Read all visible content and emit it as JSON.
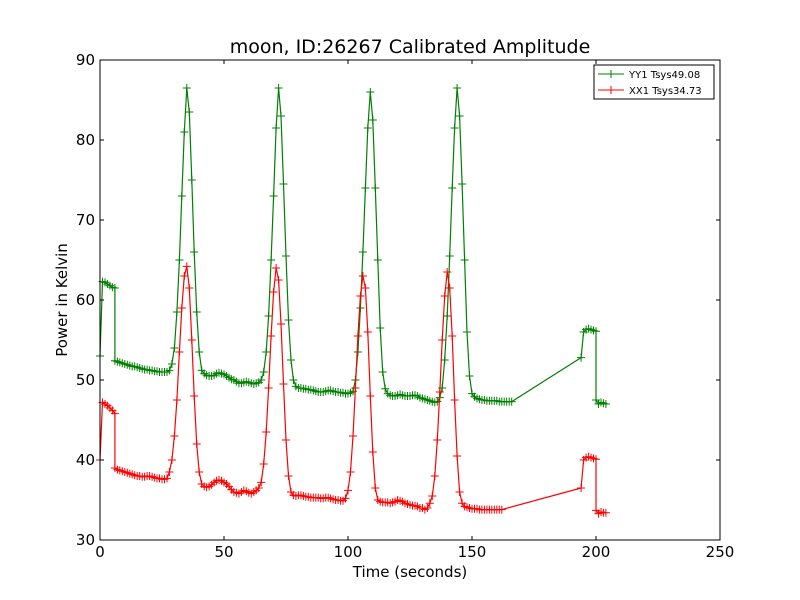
{
  "chart_data": {
    "type": "line",
    "title": "moon, ID:26267 Calibrated Amplitude",
    "xlabel": "Time (seconds)",
    "ylabel": "Power in Kelvin",
    "xlim": [
      0,
      250
    ],
    "ylim": [
      30,
      90
    ],
    "xticks": [
      0,
      50,
      100,
      150,
      200,
      250
    ],
    "yticks": [
      30,
      40,
      50,
      60,
      70,
      80,
      90
    ],
    "grid": false,
    "legend_position": "top-right",
    "marker": "+",
    "sample_interval": 1,
    "series": [
      {
        "name": "YY1 Tsys49.08",
        "color": "#008000",
        "segments": [
          {
            "x0": 0,
            "values": [
              53.0,
              62.3,
              62.2,
              62.0,
              61.8,
              61.6,
              61.5
            ]
          },
          {
            "x0": 6,
            "values": [
              52.4,
              52.3,
              52.2,
              52.1,
              52.0,
              51.9,
              51.8,
              51.7,
              51.7,
              51.6,
              51.5,
              51.4,
              51.3,
              51.3,
              51.2,
              51.2,
              51.1,
              51.1,
              51.0,
              51.0,
              51.0,
              51.0,
              51.2,
              52.0,
              54.0,
              58.5,
              65.0,
              73.0,
              81.0,
              86.5,
              83.5,
              75.0,
              66.0,
              58.5,
              53.5,
              51.2,
              50.8,
              50.6,
              50.5,
              50.5,
              50.6,
              50.8,
              50.9,
              50.8,
              50.7,
              50.5,
              50.3,
              50.1,
              50.0,
              49.8,
              49.6,
              49.6,
              49.7,
              49.8,
              49.7,
              49.6,
              49.5,
              49.6,
              49.7,
              50.0,
              51.0,
              53.5,
              58.0,
              65.0,
              73.0,
              81.5,
              86.5,
              83.0,
              74.5,
              65.5,
              57.5,
              52.5,
              50.0,
              49.2,
              49.0,
              49.0,
              48.9,
              48.9,
              48.8,
              48.8,
              48.7,
              48.6,
              48.5,
              48.5,
              48.5,
              48.6,
              48.7,
              48.7,
              48.6,
              48.5,
              48.5,
              48.4,
              48.4,
              48.3,
              48.3,
              48.4,
              48.6,
              50.0,
              53.5,
              59.0,
              66.0,
              74.0,
              81.5,
              86.0,
              82.5,
              74.0,
              65.0,
              56.5,
              51.0,
              48.9,
              48.3,
              48.1,
              48.0,
              48.0,
              48.1,
              48.2,
              48.1,
              48.0,
              48.0,
              48.0,
              48.1,
              48.1,
              48.0,
              47.8,
              47.7,
              47.6,
              47.5,
              47.4,
              47.3,
              47.2,
              47.3,
              47.8,
              49.0,
              52.5,
              58.0,
              65.5,
              74.0,
              81.5,
              86.5,
              83.0,
              74.5,
              65.0,
              56.0,
              50.5,
              48.3,
              47.9,
              47.7,
              47.6,
              47.5,
              47.5,
              47.4,
              47.4,
              47.4,
              47.4,
              47.4,
              47.3,
              47.3,
              47.3,
              47.3,
              47.3,
              47.3
            ]
          },
          {
            "x0": 194,
            "values": [
              52.8,
              56.0,
              56.3,
              56.4,
              56.3,
              56.2,
              56.1
            ]
          },
          {
            "x0": 200,
            "values": [
              47.5,
              47.0,
              47.2,
              47.1,
              47.0
            ]
          }
        ]
      },
      {
        "name": "XX1 Tsys34.73",
        "color": "#ff0000",
        "segments": [
          {
            "x0": 0,
            "values": [
              40.0,
              47.2,
              47.0,
              46.8,
              46.5,
              46.2,
              45.8
            ]
          },
          {
            "x0": 6,
            "values": [
              39.0,
              38.8,
              38.7,
              38.6,
              38.5,
              38.4,
              38.3,
              38.2,
              38.1,
              38.0,
              38.0,
              37.9,
              37.9,
              38.0,
              38.0,
              37.9,
              37.8,
              37.7,
              37.7,
              37.6,
              37.6,
              37.7,
              38.5,
              40.0,
              43.0,
              47.5,
              53.5,
              59.0,
              63.0,
              64.2,
              61.5,
              55.0,
              48.0,
              42.0,
              38.5,
              37.0,
              36.7,
              36.6,
              36.7,
              36.9,
              37.2,
              37.4,
              37.5,
              37.4,
              37.2,
              37.0,
              36.7,
              36.3,
              36.0,
              35.9,
              35.8,
              36.0,
              36.2,
              36.1,
              35.9,
              35.8,
              36.0,
              36.2,
              36.5,
              37.2,
              39.5,
              43.5,
              49.0,
              55.5,
              61.0,
              64.0,
              62.5,
              57.0,
              49.5,
              42.5,
              38.0,
              36.0,
              35.6,
              35.5,
              35.6,
              35.6,
              35.5,
              35.4,
              35.4,
              35.3,
              35.3,
              35.3,
              35.3,
              35.2,
              35.2,
              35.3,
              35.3,
              35.2,
              35.1,
              35.0,
              35.0,
              34.9,
              34.9,
              35.2,
              36.2,
              38.5,
              43.0,
              49.0,
              55.5,
              60.5,
              63.0,
              61.5,
              56.0,
              48.0,
              41.0,
              36.5,
              35.0,
              34.8,
              34.7,
              34.7,
              34.7,
              34.6,
              34.7,
              34.8,
              35.0,
              34.9,
              34.8,
              34.6,
              34.5,
              34.4,
              34.3,
              34.3,
              34.2,
              34.0,
              34.0,
              33.8,
              34.0,
              34.6,
              35.5,
              38.0,
              42.5,
              48.5,
              55.0,
              60.5,
              63.5,
              61.5,
              55.5,
              47.5,
              40.5,
              36.0,
              34.6,
              34.2,
              34.1,
              34.0,
              33.9,
              33.9,
              33.9,
              33.8,
              33.8,
              33.8,
              33.8,
              33.8,
              33.8,
              33.8,
              33.8,
              33.8,
              33.8
            ]
          },
          {
            "x0": 194,
            "values": [
              36.5,
              40.0,
              40.3,
              40.4,
              40.3,
              40.2,
              40.1
            ]
          },
          {
            "x0": 200,
            "values": [
              33.7,
              33.3,
              33.5,
              33.4,
              33.4
            ]
          }
        ]
      }
    ]
  }
}
